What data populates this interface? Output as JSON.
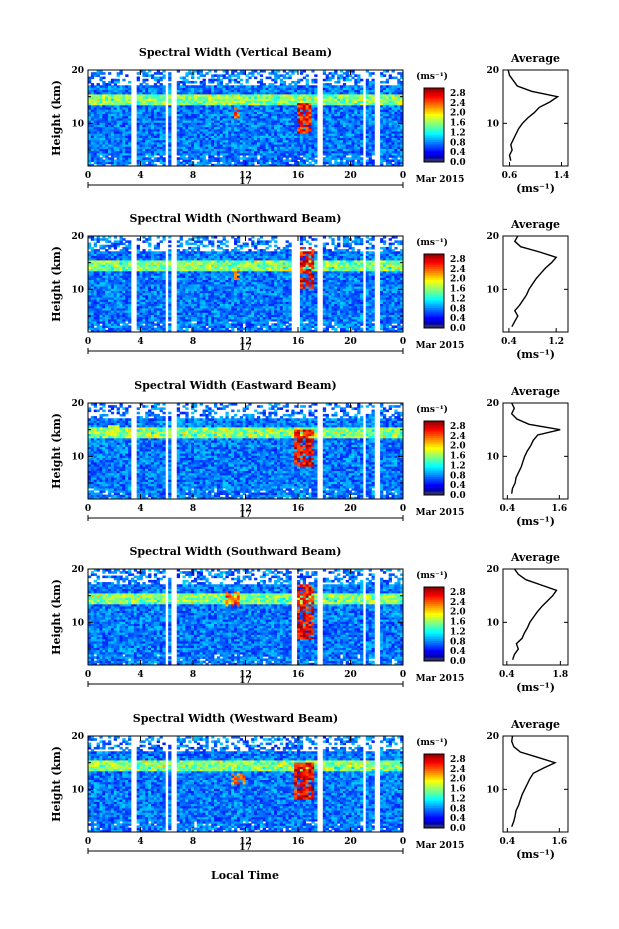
{
  "figure": {
    "time_axis_label": "Local Time",
    "date_day": "17",
    "date_month": "Mar 2015",
    "height_axis_label": "Height (km)",
    "colorbar_unit": "(ms⁻¹)",
    "profile_title": "Average",
    "profile_unit": "(ms⁻¹)"
  },
  "chart_data": [
    {
      "type": "heatmap",
      "title": "Spectral Width (Vertical Beam)",
      "xlabel": "",
      "ylabel": "Height (km)",
      "xlim": [
        0,
        24
      ],
      "ylim": [
        2,
        20
      ],
      "x_ticks": [
        "0",
        "4",
        "8",
        "12",
        "16",
        "20",
        "0"
      ],
      "y_ticks": [
        "20",
        "10"
      ],
      "colorbar": {
        "unit": "(ms⁻¹)",
        "ticks": [
          "0.0",
          "0.4",
          "0.8",
          "1.2",
          "1.6",
          "2.0",
          "2.4",
          "2.8"
        ],
        "range": [
          0,
          3.0
        ]
      },
      "data_gaps_hours": [
        [
          3.3,
          3.7
        ],
        [
          5.9,
          6.2
        ],
        [
          6.4,
          6.7
        ],
        [
          17.4,
          17.8
        ],
        [
          20.9,
          21.2
        ],
        [
          21.9,
          22.2
        ]
      ],
      "enhanced_regions": [
        {
          "x": [
            16,
            17
          ],
          "y": [
            8,
            14
          ],
          "level": 2.6
        },
        {
          "x": [
            11.2,
            11.6
          ],
          "y": [
            11,
            13
          ],
          "level": 2.4
        }
      ],
      "profile": {
        "title": "Average",
        "xlabel": "(ms⁻¹)",
        "x_ticks": [
          "0.6",
          "1.4"
        ],
        "xlim": [
          0.5,
          1.5
        ],
        "y_ticks": [
          "20",
          "10"
        ],
        "ylim": [
          2,
          20
        ],
        "heights": [
          3,
          4,
          5,
          6,
          7,
          8,
          9,
          10,
          11,
          12,
          13,
          14,
          15,
          16,
          17,
          18,
          19,
          20
        ],
        "values": [
          0.62,
          0.6,
          0.64,
          0.62,
          0.66,
          0.7,
          0.74,
          0.8,
          0.88,
          0.98,
          1.06,
          1.22,
          1.34,
          0.94,
          0.72,
          0.66,
          0.6,
          0.58
        ]
      }
    },
    {
      "type": "heatmap",
      "title": "Spectral Width (Northward Beam)",
      "xlabel": "",
      "ylabel": "Height (km)",
      "xlim": [
        0,
        24
      ],
      "ylim": [
        2,
        20
      ],
      "x_ticks": [
        "0",
        "4",
        "8",
        "12",
        "16",
        "20",
        "0"
      ],
      "y_ticks": [
        "20",
        "10"
      ],
      "colorbar": {
        "unit": "(ms⁻¹)",
        "ticks": [
          "0.0",
          "0.4",
          "0.8",
          "1.2",
          "1.6",
          "2.0",
          "2.4",
          "2.8"
        ],
        "range": [
          0,
          3.0
        ]
      },
      "data_gaps_hours": [
        [
          3.3,
          3.7
        ],
        [
          5.9,
          6.2
        ],
        [
          6.4,
          6.7
        ],
        [
          15.6,
          16.1
        ],
        [
          17.4,
          17.8
        ],
        [
          20.9,
          21.2
        ],
        [
          21.9,
          22.2
        ]
      ],
      "enhanced_regions": [
        {
          "x": [
            16.2,
            17.2
          ],
          "y": [
            10,
            18
          ],
          "level": 2.7
        },
        {
          "x": [
            11.2,
            11.6
          ],
          "y": [
            12,
            14
          ],
          "level": 2.4
        }
      ],
      "profile": {
        "title": "Average",
        "xlabel": "(ms⁻¹)",
        "x_ticks": [
          "0.4",
          "1.2"
        ],
        "xlim": [
          0.3,
          1.4
        ],
        "y_ticks": [
          "20",
          "10"
        ],
        "ylim": [
          2,
          20
        ],
        "heights": [
          3,
          4,
          5,
          6,
          7,
          8,
          9,
          10,
          11,
          12,
          13,
          14,
          15,
          16,
          17,
          18,
          19,
          20
        ],
        "values": [
          0.45,
          0.5,
          0.55,
          0.5,
          0.58,
          0.64,
          0.7,
          0.74,
          0.8,
          0.86,
          0.94,
          1.02,
          1.12,
          1.2,
          0.92,
          0.6,
          0.5,
          0.55
        ]
      }
    },
    {
      "type": "heatmap",
      "title": "Spectral Width (Eastward Beam)",
      "xlabel": "",
      "ylabel": "Height (km)",
      "xlim": [
        0,
        24
      ],
      "ylim": [
        2,
        20
      ],
      "x_ticks": [
        "0",
        "4",
        "8",
        "12",
        "16",
        "20",
        "0"
      ],
      "y_ticks": [
        "20",
        "10"
      ],
      "colorbar": {
        "unit": "(ms⁻¹)",
        "ticks": [
          "0.0",
          "0.4",
          "0.8",
          "1.2",
          "1.6",
          "2.0",
          "2.4",
          "2.8"
        ],
        "range": [
          0,
          3.0
        ]
      },
      "data_gaps_hours": [
        [
          3.3,
          3.7
        ],
        [
          5.9,
          6.2
        ],
        [
          6.4,
          6.7
        ],
        [
          17.4,
          17.8
        ],
        [
          20.9,
          21.2
        ],
        [
          21.9,
          22.2
        ]
      ],
      "enhanced_regions": [
        {
          "x": [
            15.8,
            17.2
          ],
          "y": [
            8,
            15
          ],
          "level": 2.7
        },
        {
          "x": [
            1.5,
            2.5
          ],
          "y": [
            14,
            16
          ],
          "level": 1.8
        }
      ],
      "profile": {
        "title": "Average",
        "xlabel": "(ms⁻¹)",
        "x_ticks": [
          "0.4",
          "1.6"
        ],
        "xlim": [
          0.3,
          1.8
        ],
        "y_ticks": [
          "20",
          "10"
        ],
        "ylim": [
          2,
          20
        ],
        "heights": [
          3,
          4,
          5,
          6,
          7,
          8,
          9,
          10,
          11,
          12,
          13,
          14,
          15,
          16,
          17,
          18,
          19,
          20
        ],
        "values": [
          0.5,
          0.52,
          0.58,
          0.6,
          0.66,
          0.72,
          0.76,
          0.8,
          0.86,
          0.94,
          1.0,
          1.1,
          1.62,
          0.9,
          0.62,
          0.5,
          0.56,
          0.5
        ]
      }
    },
    {
      "type": "heatmap",
      "title": "Spectral Width (Southward Beam)",
      "xlabel": "",
      "ylabel": "Height (km)",
      "xlim": [
        0,
        24
      ],
      "ylim": [
        2,
        20
      ],
      "x_ticks": [
        "0",
        "4",
        "8",
        "12",
        "16",
        "20",
        "0"
      ],
      "y_ticks": [
        "20",
        "10"
      ],
      "colorbar": {
        "unit": "(ms⁻¹)",
        "ticks": [
          "0.0",
          "0.4",
          "0.8",
          "1.2",
          "1.6",
          "2.0",
          "2.4",
          "2.8"
        ],
        "range": [
          0,
          3.0
        ]
      },
      "data_gaps_hours": [
        [
          5.9,
          6.2
        ],
        [
          6.4,
          6.7
        ],
        [
          15.6,
          16.0
        ],
        [
          17.4,
          17.8
        ],
        [
          20.9,
          21.2
        ],
        [
          21.9,
          22.2
        ]
      ],
      "enhanced_regions": [
        {
          "x": [
            16,
            17.3
          ],
          "y": [
            7,
            17
          ],
          "level": 2.7
        },
        {
          "x": [
            10.5,
            11.5
          ],
          "y": [
            13,
            16
          ],
          "level": 2.4
        }
      ],
      "profile": {
        "title": "Average",
        "xlabel": "(ms⁻¹)",
        "x_ticks": [
          "0.4",
          "1.8"
        ],
        "xlim": [
          0.3,
          2.0
        ],
        "y_ticks": [
          "20",
          "10"
        ],
        "ylim": [
          2,
          20
        ],
        "heights": [
          3,
          4,
          5,
          6,
          7,
          8,
          9,
          10,
          11,
          12,
          13,
          14,
          15,
          16,
          17,
          18,
          19,
          20
        ],
        "values": [
          0.55,
          0.6,
          0.7,
          0.65,
          0.8,
          0.86,
          0.94,
          1.0,
          1.1,
          1.2,
          1.32,
          1.46,
          1.6,
          1.7,
          1.3,
          0.9,
          0.7,
          0.6
        ]
      }
    },
    {
      "type": "heatmap",
      "title": "Spectral Width (Westward Beam)",
      "xlabel": "Local Time",
      "ylabel": "Height (km)",
      "xlim": [
        0,
        24
      ],
      "ylim": [
        2,
        20
      ],
      "x_ticks": [
        "0",
        "4",
        "8",
        "12",
        "16",
        "20",
        "0"
      ],
      "y_ticks": [
        "20",
        "10"
      ],
      "colorbar": {
        "unit": "(ms⁻¹)",
        "ticks": [
          "0.0",
          "0.4",
          "0.8",
          "1.2",
          "1.6",
          "2.0",
          "2.4",
          "2.8"
        ],
        "range": [
          0,
          3.0
        ]
      },
      "data_gaps_hours": [
        [
          3.3,
          3.7
        ],
        [
          5.9,
          6.2
        ],
        [
          6.4,
          6.7
        ],
        [
          17.4,
          17.8
        ],
        [
          20.9,
          21.2
        ],
        [
          21.9,
          22.2
        ]
      ],
      "enhanced_regions": [
        {
          "x": [
            15.8,
            17.3
          ],
          "y": [
            8,
            15
          ],
          "level": 2.7
        },
        {
          "x": [
            11,
            12
          ],
          "y": [
            11,
            13
          ],
          "level": 2.4
        }
      ],
      "profile": {
        "title": "Average",
        "xlabel": "(ms⁻¹)",
        "x_ticks": [
          "0.4",
          "1.6"
        ],
        "xlim": [
          0.3,
          1.8
        ],
        "y_ticks": [
          "20",
          "10"
        ],
        "ylim": [
          2,
          20
        ],
        "heights": [
          3,
          4,
          5,
          6,
          7,
          8,
          9,
          10,
          11,
          12,
          13,
          14,
          15,
          16,
          17,
          18,
          19,
          20
        ],
        "values": [
          0.5,
          0.55,
          0.58,
          0.6,
          0.66,
          0.7,
          0.74,
          0.8,
          0.86,
          0.92,
          1.0,
          1.24,
          1.5,
          1.1,
          0.7,
          0.55,
          0.5,
          0.52
        ]
      }
    }
  ]
}
